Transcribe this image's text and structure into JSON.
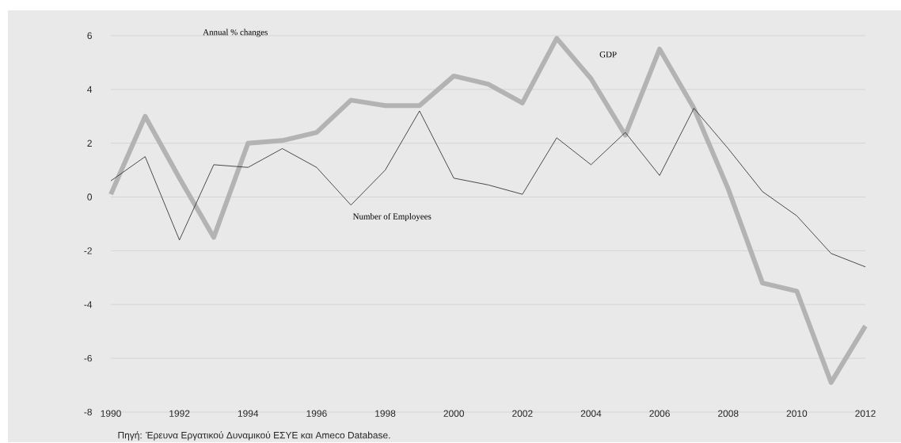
{
  "chart_data": {
    "type": "line",
    "ylabel": "Annual % changes",
    "x": [
      1990,
      1991,
      1992,
      1993,
      1994,
      1995,
      1996,
      1997,
      1998,
      1999,
      2000,
      2001,
      2002,
      2003,
      2004,
      2005,
      2006,
      2007,
      2008,
      2009,
      2010,
      2011,
      2012
    ],
    "series": [
      {
        "name": "GDP",
        "color": "#b3b3b3",
        "values": [
          0.1,
          3.0,
          0.7,
          -1.5,
          2.0,
          2.1,
          2.4,
          3.6,
          3.4,
          3.4,
          4.5,
          4.2,
          3.5,
          5.9,
          4.4,
          2.3,
          5.5,
          3.3,
          0.3,
          -3.2,
          -3.5,
          -6.9,
          -4.8
        ]
      },
      {
        "name": "Number of Employees",
        "color": "#222222",
        "values": [
          0.6,
          1.5,
          -1.6,
          1.2,
          1.1,
          1.8,
          1.1,
          -0.3,
          1.0,
          3.2,
          0.7,
          0.45,
          0.1,
          2.2,
          1.2,
          2.4,
          0.8,
          3.3,
          1.8,
          0.2,
          -0.7,
          -2.1,
          -2.6
        ]
      }
    ],
    "xlim": [
      1990,
      2012
    ],
    "xticks": [
      1990,
      1992,
      1994,
      1996,
      1998,
      2000,
      2002,
      2004,
      2006,
      2008,
      2010,
      2012
    ],
    "ylim": [
      -8,
      6
    ],
    "yticks": [
      -8,
      -6,
      -4,
      -2,
      0,
      2,
      4,
      6
    ],
    "grid": "y",
    "line_style": "solid",
    "annotations": [
      "Πηγή: Έρευνα Εργατικού Δυναμικού ΕΣΥΕ και Ameco Database."
    ]
  }
}
